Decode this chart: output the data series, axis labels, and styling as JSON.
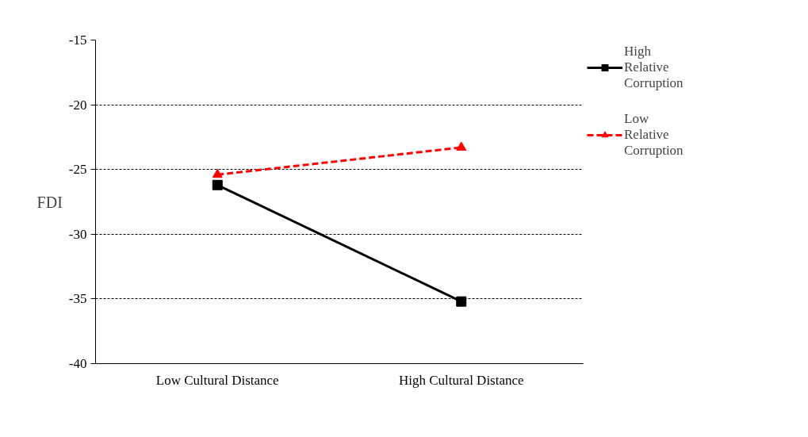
{
  "chart_data": {
    "type": "line",
    "ylabel": "FDI",
    "categories": [
      "Low Cultural Distance",
      "High Cultural Distance"
    ],
    "series": [
      {
        "name": "High Relative Corruption",
        "color": "#000000",
        "values": [
          -26.2,
          -35.2
        ],
        "marker": "square",
        "line_style": "solid"
      },
      {
        "name": "Low Relative Corruption",
        "color": "#ff0000",
        "values": [
          -25.4,
          -23.3
        ],
        "marker": "triangle",
        "line_style": "dashed"
      }
    ],
    "ylim": [
      -40,
      -15
    ],
    "yticks": [
      -40,
      -35,
      -30,
      -25,
      -20,
      -15
    ],
    "grid": "y",
    "legend": "right"
  }
}
